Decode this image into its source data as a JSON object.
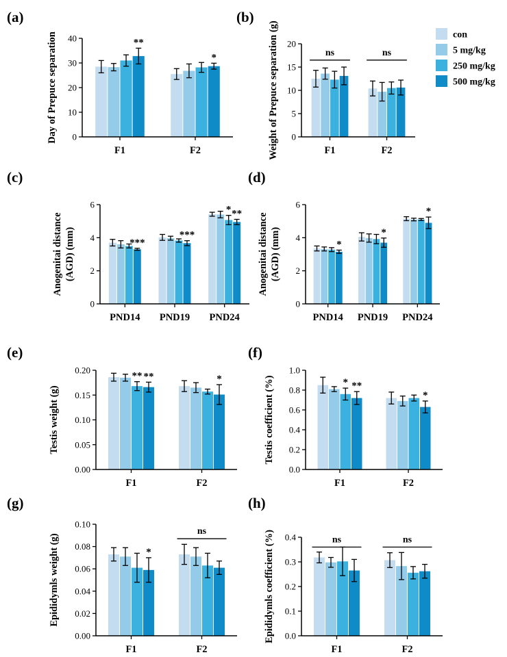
{
  "legend": [
    {
      "name": "con",
      "color": "#c3dcef"
    },
    {
      "name": "5 mg/kg",
      "color": "#93cbe8"
    },
    {
      "name": "250 mg/kg",
      "color": "#3bb1e0"
    },
    {
      "name": "500 mg/kg",
      "color": "#0f8cc8"
    }
  ],
  "chart_data": [
    {
      "panel": "(a)",
      "type": "bar",
      "ylabel": "Day of Prepuce separation",
      "categories": [
        "F1",
        "F2"
      ],
      "ylim": [
        0,
        40
      ],
      "yticks": [
        0,
        10,
        20,
        30,
        40
      ],
      "series": [
        {
          "values": [
            28.5,
            25.5
          ],
          "errors": [
            2.5,
            2.2
          ]
        },
        {
          "values": [
            28.3,
            26.8
          ],
          "errors": [
            1.5,
            2.8
          ]
        },
        {
          "values": [
            31.0,
            28.2
          ],
          "errors": [
            2.3,
            2.0
          ]
        },
        {
          "values": [
            32.8,
            28.7
          ],
          "errors": [
            3.2,
            1.2
          ]
        }
      ],
      "annotations": [
        {
          "category": 0,
          "series": 3,
          "text": "**"
        },
        {
          "category": 1,
          "series": 3,
          "text": "*"
        }
      ],
      "ns_groups": []
    },
    {
      "panel": "(b)",
      "type": "bar",
      "ylabel": "Weight of Prepuce separation (g)",
      "categories": [
        "F1",
        "F2"
      ],
      "ylim": [
        0,
        20
      ],
      "yticks": [
        0,
        5,
        10,
        15,
        20
      ],
      "series": [
        {
          "values": [
            12.5,
            10.4
          ],
          "errors": [
            1.8,
            1.6
          ]
        },
        {
          "values": [
            13.6,
            9.7
          ],
          "errors": [
            1.2,
            2.0
          ]
        },
        {
          "values": [
            12.3,
            10.5
          ],
          "errors": [
            1.8,
            1.3
          ]
        },
        {
          "values": [
            13.1,
            10.6
          ],
          "errors": [
            1.9,
            1.6
          ]
        }
      ],
      "annotations": [],
      "ns_groups": [
        {
          "category": 0,
          "text": "ns",
          "level": 16.5
        },
        {
          "category": 1,
          "text": "ns",
          "level": 16.5
        }
      ]
    },
    {
      "panel": "(c)",
      "type": "bar",
      "ylabel": [
        "Anogenitai distance",
        "(AGD) (mm)"
      ],
      "categories": [
        "PND14",
        "PND19",
        "PND24"
      ],
      "ylim": [
        0,
        6
      ],
      "yticks": [
        0,
        2,
        4,
        6
      ],
      "series": [
        {
          "values": [
            3.7,
            4.02,
            5.42
          ],
          "errors": [
            0.2,
            0.18,
            0.12
          ]
        },
        {
          "values": [
            3.6,
            3.97,
            5.4
          ],
          "errors": [
            0.22,
            0.12,
            0.2
          ]
        },
        {
          "values": [
            3.5,
            3.83,
            5.07
          ],
          "errors": [
            0.12,
            0.1,
            0.28
          ]
        },
        {
          "values": [
            3.3,
            3.67,
            4.95
          ],
          "errors": [
            0.06,
            0.15,
            0.16
          ]
        }
      ],
      "annotations": [
        {
          "category": 0,
          "series": 3,
          "text": "***"
        },
        {
          "category": 1,
          "series": 3,
          "text": "***"
        },
        {
          "category": 2,
          "series": 2,
          "text": "*"
        },
        {
          "category": 2,
          "series": 3,
          "text": "**"
        }
      ],
      "ns_groups": []
    },
    {
      "panel": "(d)",
      "type": "bar",
      "ylabel": [
        "Anogenitai distance",
        "(AGD) (mm)"
      ],
      "categories": [
        "PND14",
        "PND19",
        "PND24"
      ],
      "ylim": [
        0,
        6
      ],
      "yticks": [
        0,
        2,
        4,
        6
      ],
      "series": [
        {
          "values": [
            3.35,
            4.05,
            5.15
          ],
          "errors": [
            0.15,
            0.25,
            0.12
          ]
        },
        {
          "values": [
            3.32,
            3.98,
            5.1
          ],
          "errors": [
            0.12,
            0.25,
            0.08
          ]
        },
        {
          "values": [
            3.28,
            3.92,
            5.1
          ],
          "errors": [
            0.12,
            0.28,
            0.06
          ]
        },
        {
          "values": [
            3.15,
            3.7,
            4.9
          ],
          "errors": [
            0.1,
            0.28,
            0.35
          ]
        }
      ],
      "annotations": [
        {
          "category": 0,
          "series": 3,
          "text": "*"
        },
        {
          "category": 1,
          "series": 3,
          "text": "*"
        },
        {
          "category": 2,
          "series": 3,
          "text": "*"
        }
      ],
      "ns_groups": []
    },
    {
      "panel": "(e)",
      "type": "bar",
      "ylabel": "Testis weight (g)",
      "categories": [
        "F1",
        "F2"
      ],
      "ylim": [
        0,
        0.2
      ],
      "yticks": [
        "0.00",
        "0.05",
        "0.10",
        "0.15",
        "0.20"
      ],
      "series": [
        {
          "values": [
            0.186,
            0.168
          ],
          "errors": [
            0.008,
            0.011
          ]
        },
        {
          "values": [
            0.185,
            0.165
          ],
          "errors": [
            0.007,
            0.01
          ]
        },
        {
          "values": [
            0.168,
            0.157
          ],
          "errors": [
            0.009,
            0.005
          ]
        },
        {
          "values": [
            0.166,
            0.151
          ],
          "errors": [
            0.01,
            0.02
          ]
        }
      ],
      "annotations": [
        {
          "category": 0,
          "series": 2,
          "text": "**"
        },
        {
          "category": 0,
          "series": 3,
          "text": "**"
        },
        {
          "category": 1,
          "series": 3,
          "text": "*"
        }
      ],
      "ns_groups": []
    },
    {
      "panel": "(f)",
      "type": "bar",
      "ylabel": "Testis coefficient (%)",
      "categories": [
        "F1",
        "F2"
      ],
      "ylim": [
        0,
        1.0
      ],
      "yticks": [
        "0.0",
        "0.2",
        "0.4",
        "0.6",
        "0.8",
        "1.0"
      ],
      "series": [
        {
          "values": [
            0.85,
            0.72
          ],
          "errors": [
            0.08,
            0.06
          ]
        },
        {
          "values": [
            0.81,
            0.69
          ],
          "errors": [
            0.025,
            0.05
          ]
        },
        {
          "values": [
            0.76,
            0.72
          ],
          "errors": [
            0.06,
            0.03
          ]
        },
        {
          "values": [
            0.72,
            0.63
          ],
          "errors": [
            0.065,
            0.06
          ]
        }
      ],
      "annotations": [
        {
          "category": 0,
          "series": 2,
          "text": "*"
        },
        {
          "category": 0,
          "series": 3,
          "text": "**"
        },
        {
          "category": 1,
          "series": 3,
          "text": "*"
        }
      ],
      "ns_groups": []
    },
    {
      "panel": "(g)",
      "type": "bar",
      "ylabel": "Epididymls weight (g)",
      "categories": [
        "F1",
        "F2"
      ],
      "ylim": [
        0,
        0.1
      ],
      "yticks": [
        "0.00",
        "0.02",
        "0.04",
        "0.06",
        "0.08",
        "0.10"
      ],
      "series": [
        {
          "values": [
            0.073,
            0.073
          ],
          "errors": [
            0.006,
            0.009
          ]
        },
        {
          "values": [
            0.071,
            0.071
          ],
          "errors": [
            0.008,
            0.008
          ]
        },
        {
          "values": [
            0.061,
            0.063
          ],
          "errors": [
            0.013,
            0.011
          ]
        },
        {
          "values": [
            0.059,
            0.061
          ],
          "errors": [
            0.011,
            0.006
          ]
        }
      ],
      "annotations": [
        {
          "category": 0,
          "series": 3,
          "text": "*"
        }
      ],
      "ns_groups": [
        {
          "category": 1,
          "text": "ns",
          "level": 0.087
        }
      ]
    },
    {
      "panel": "(h)",
      "type": "bar",
      "ylabel": "Epididymls coefficient (%)",
      "categories": [
        "F1",
        "F2"
      ],
      "ylim": [
        0,
        0.4
      ],
      "yticks": [
        "0.0",
        "0.1",
        "0.2",
        "0.3",
        "0.4"
      ],
      "series": [
        {
          "values": [
            0.318,
            0.307
          ],
          "errors": [
            0.022,
            0.03
          ]
        },
        {
          "values": [
            0.298,
            0.283
          ],
          "errors": [
            0.02,
            0.055
          ]
        },
        {
          "values": [
            0.302,
            0.256
          ],
          "errors": [
            0.058,
            0.025
          ]
        },
        {
          "values": [
            0.265,
            0.262
          ],
          "errors": [
            0.045,
            0.028
          ]
        }
      ],
      "annotations": [],
      "ns_groups": [
        {
          "category": 0,
          "text": "ns",
          "level": 0.36
        },
        {
          "category": 1,
          "text": "ns",
          "level": 0.36
        }
      ]
    }
  ]
}
